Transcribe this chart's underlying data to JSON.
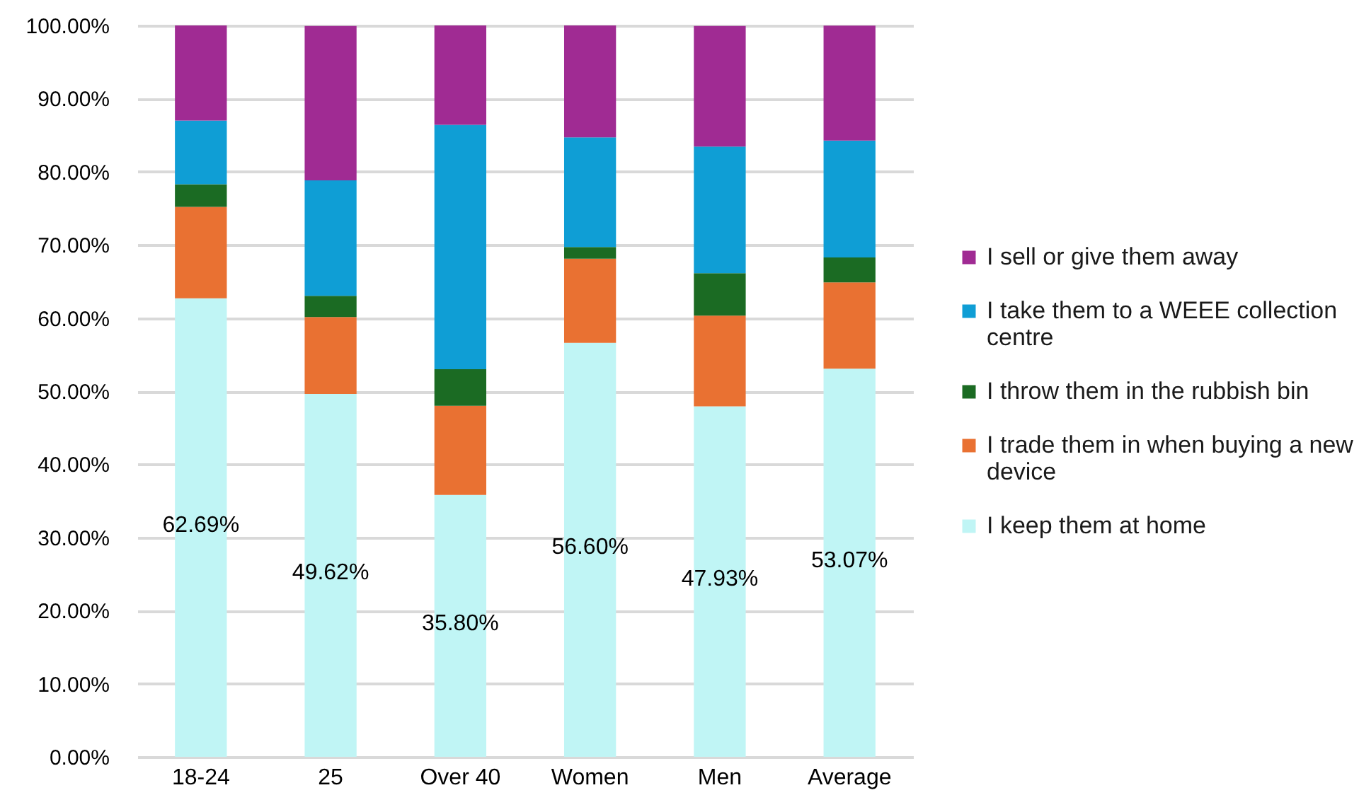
{
  "chart_data": {
    "type": "bar",
    "stacked": true,
    "categories": [
      "18-24",
      "25",
      "Over 40",
      "Women",
      "Men",
      "Average"
    ],
    "series": [
      {
        "name": "I keep them at home",
        "color": "#c0f5f5",
        "values": [
          62.69,
          49.62,
          35.8,
          56.6,
          47.93,
          53.07
        ],
        "value_labels": [
          "62.69%",
          "49.62%",
          "35.80%",
          "56.60%",
          "47.93%",
          "53.07%"
        ]
      },
      {
        "name": "I trade them in when buying a new device",
        "color": "#e97132",
        "values": [
          12.5,
          10.5,
          12.2,
          11.5,
          12.4,
          11.8
        ]
      },
      {
        "name": "I throw them in the rubbish bin",
        "color": "#1b6b23",
        "values": [
          3.1,
          2.9,
          5.0,
          1.6,
          5.8,
          3.4
        ]
      },
      {
        "name": "I take them to a WEEE collection centre",
        "color": "#0f9ed5",
        "values": [
          8.7,
          15.8,
          33.4,
          15.0,
          17.3,
          16.0
        ]
      },
      {
        "name": "I sell or give them away",
        "color": "#a02b93",
        "values": [
          13.0,
          21.1,
          13.6,
          15.3,
          16.5,
          15.7
        ]
      }
    ],
    "ylim": [
      0,
      100
    ],
    "yticks": [
      {
        "value": 0,
        "label": "0.00%"
      },
      {
        "value": 10,
        "label": "10.00%"
      },
      {
        "value": 20,
        "label": "20.00%"
      },
      {
        "value": 30,
        "label": "30.00%"
      },
      {
        "value": 40,
        "label": "40.00%"
      },
      {
        "value": 50,
        "label": "50.00%"
      },
      {
        "value": 60,
        "label": "60.00%"
      },
      {
        "value": 70,
        "label": "70.00%"
      },
      {
        "value": 80,
        "label": "80.00%"
      },
      {
        "value": 90,
        "label": "90.00%"
      },
      {
        "value": 100,
        "label": "100.00%"
      }
    ],
    "grid": "y",
    "legend": "right"
  }
}
